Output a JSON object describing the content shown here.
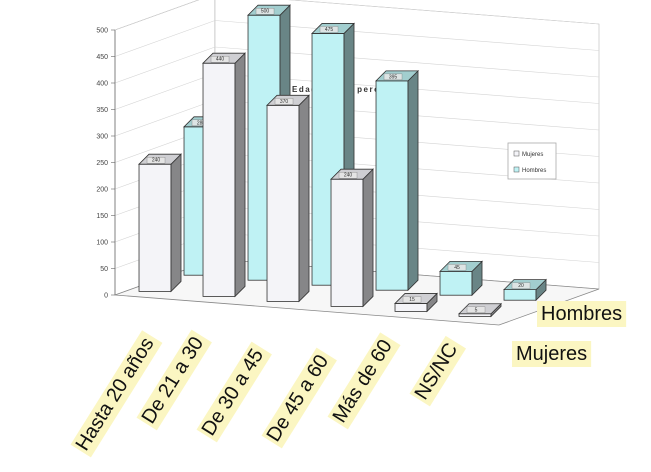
{
  "chart_data": {
    "type": "bar",
    "subtype": "3d-clustered-column",
    "title": "Edad de los peregrinos",
    "categories": [
      "Hasta 20 años",
      "De 21 a 30",
      "De 30 a 45",
      "De 45 a 60",
      "Más de 60",
      "NS/NC"
    ],
    "series": [
      {
        "name": "Mujeres",
        "values": [
          240,
          440,
          370,
          240,
          15,
          5
        ],
        "color": "#f4f4f8"
      },
      {
        "name": "Hombres",
        "values": [
          280,
          500,
          475,
          395,
          45,
          20
        ],
        "color": "#bff2f4"
      }
    ],
    "series_axis_labels": [
      "Hombres",
      "Mujeres"
    ],
    "legend_entries": [
      "Mujeres",
      "Hombres"
    ],
    "legend_placement": "right",
    "yticks": [
      "0",
      "50",
      "100",
      "150",
      "200",
      "250",
      "300",
      "350",
      "400",
      "450",
      "500"
    ],
    "ylim": [
      0,
      500
    ],
    "xlabel": "",
    "ylabel": "",
    "grid": true,
    "label_background": "#fbf6c2"
  }
}
